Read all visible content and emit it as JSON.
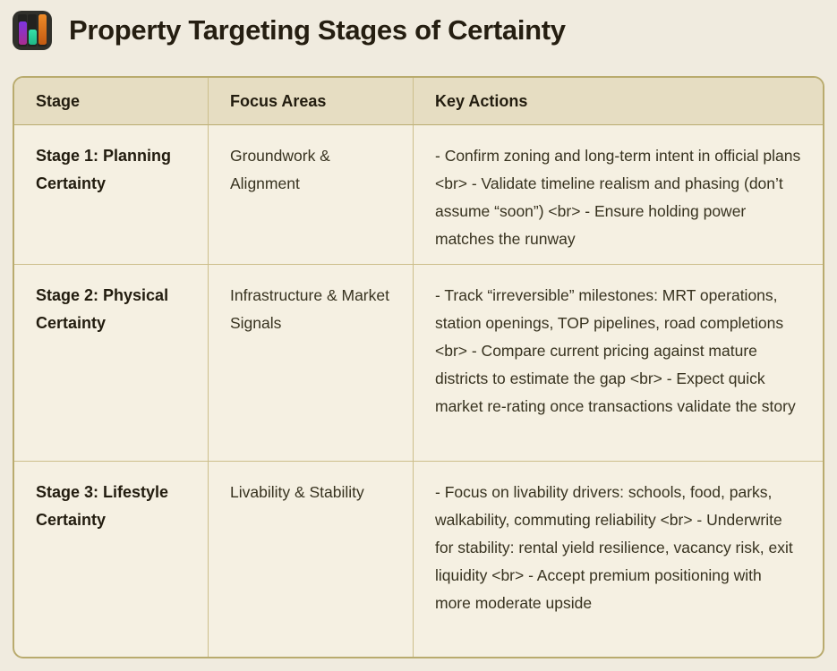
{
  "page": {
    "title": "Property Targeting Stages of Certainty",
    "icon": "bar-chart-icon"
  },
  "colors": {
    "page_bg": "#f0ebdf",
    "table_bg": "#f5f0e2",
    "header_bg": "#e6ddc2",
    "border_outer": "#b9ab6e",
    "border_inner": "#ccbe8b",
    "title_text": "#251e11",
    "body_text": "#37321f",
    "icon_bg": "#30302b",
    "icon_bar_purple": "#7d35e0",
    "icon_bar_green": "#2fd6a2",
    "icon_bar_orange": "#ee8b28"
  },
  "table": {
    "headers": [
      "Stage",
      "Focus Areas",
      "Key Actions"
    ],
    "rows": [
      {
        "stage": "Stage 1: Planning Certainty",
        "focus": "Groundwork & Alignment",
        "actions": "- Confirm zoning and long-term intent in official plans  <br> - Validate timeline realism and phasing (don’t assume “soon”) <br> - Ensure holding power matches the runway"
      },
      {
        "stage": "Stage 2: Physical Certainty",
        "focus": "Infrastructure & Market Signals",
        "actions": "- Track “irreversible” milestones: MRT operations, station openings, TOP pipelines, road completions <br> - Compare current pricing against mature districts to estimate the gap <br> - Expect quick market re-rating once transactions validate the story"
      },
      {
        "stage": "Stage 3: Lifestyle Certainty",
        "focus": "Livability & Stability",
        "actions": "- Focus on livability drivers: schools, food, parks, walkability, commuting reliability <br> - Underwrite for stability: rental yield resilience, vacancy risk, exit liquidity <br> - Accept premium positioning with more moderate upside"
      }
    ]
  }
}
